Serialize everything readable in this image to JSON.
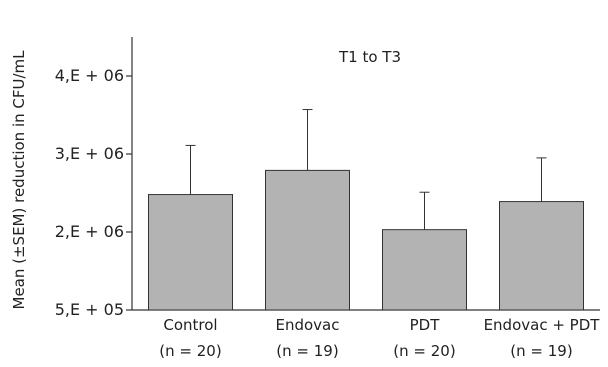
{
  "chart_data": {
    "type": "bar",
    "annotation": "T1 to T3",
    "ylabel": "Mean (±SEM) reduction in CFU/mL",
    "xlabel": "",
    "ylim": [
      500000,
      4000000
    ],
    "y_ticks": [
      {
        "value": 500000,
        "label": "5,E + 05"
      },
      {
        "value": 1500000,
        "label": "2,E + 06"
      },
      {
        "value": 2500000,
        "label": "3,E + 06"
      },
      {
        "value": 3500000,
        "label": "4,E + 06"
      }
    ],
    "categories": [
      {
        "name": "Control",
        "n_label": "(n = 20)"
      },
      {
        "name": "Endovac",
        "n_label": "(n = 19)"
      },
      {
        "name": "PDT",
        "n_label": "(n = 20)"
      },
      {
        "name": "Endovac + PDT",
        "n_label": "(n = 19)"
      }
    ],
    "values": [
      1980000,
      2290000,
      1530000,
      1890000
    ],
    "errors": [
      630000,
      780000,
      480000,
      560000
    ],
    "grid": false,
    "legend": "none",
    "bar_color": "#b3b3b3"
  }
}
